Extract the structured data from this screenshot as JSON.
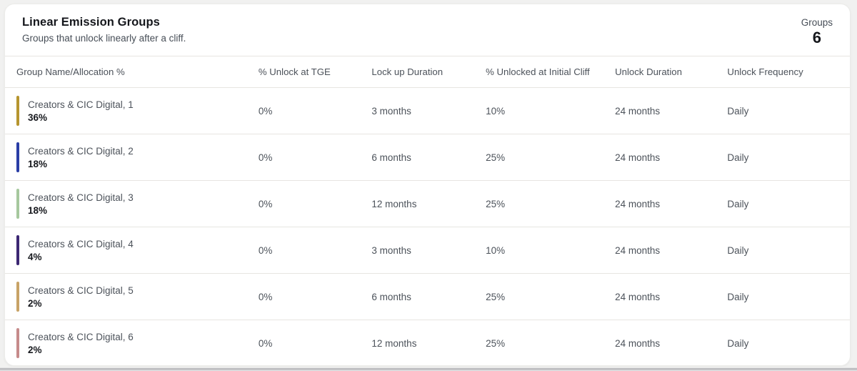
{
  "header": {
    "title": "Linear Emission Groups",
    "subtitle": "Groups that unlock linearly after a cliff.",
    "groups_label": "Groups",
    "groups_count": "6"
  },
  "table": {
    "columns": [
      "Group Name/Allocation %",
      "% Unlock at TGE",
      "Lock up Duration",
      "% Unlocked at Initial Cliff",
      "Unlock Duration",
      "Unlock Frequency"
    ],
    "rows": [
      {
        "name": "Creators & CIC Digital, 1",
        "allocation": "36%",
        "color": "#b6952f",
        "unlock_at_tge": "0%",
        "lockup_duration": "3 months",
        "unlocked_at_cliff": "10%",
        "unlock_duration": "24 months",
        "unlock_frequency": "Daily"
      },
      {
        "name": "Creators & CIC Digital, 2",
        "allocation": "18%",
        "color": "#2a3ea6",
        "unlock_at_tge": "0%",
        "lockup_duration": "6 months",
        "unlocked_at_cliff": "25%",
        "unlock_duration": "24 months",
        "unlock_frequency": "Daily"
      },
      {
        "name": "Creators & CIC Digital, 3",
        "allocation": "18%",
        "color": "#a6c89e",
        "unlock_at_tge": "0%",
        "lockup_duration": "12 months",
        "unlocked_at_cliff": "25%",
        "unlock_duration": "24 months",
        "unlock_frequency": "Daily"
      },
      {
        "name": "Creators & CIC Digital, 4",
        "allocation": "4%",
        "color": "#3c2773",
        "unlock_at_tge": "0%",
        "lockup_duration": "3 months",
        "unlocked_at_cliff": "10%",
        "unlock_duration": "24 months",
        "unlock_frequency": "Daily"
      },
      {
        "name": "Creators & CIC Digital, 5",
        "allocation": "2%",
        "color": "#c8a367",
        "unlock_at_tge": "0%",
        "lockup_duration": "6 months",
        "unlocked_at_cliff": "25%",
        "unlock_duration": "24 months",
        "unlock_frequency": "Daily"
      },
      {
        "name": "Creators & CIC Digital, 6",
        "allocation": "2%",
        "color": "#c68b8b",
        "unlock_at_tge": "0%",
        "lockup_duration": "12 months",
        "unlocked_at_cliff": "25%",
        "unlock_duration": "24 months",
        "unlock_frequency": "Daily"
      }
    ]
  }
}
